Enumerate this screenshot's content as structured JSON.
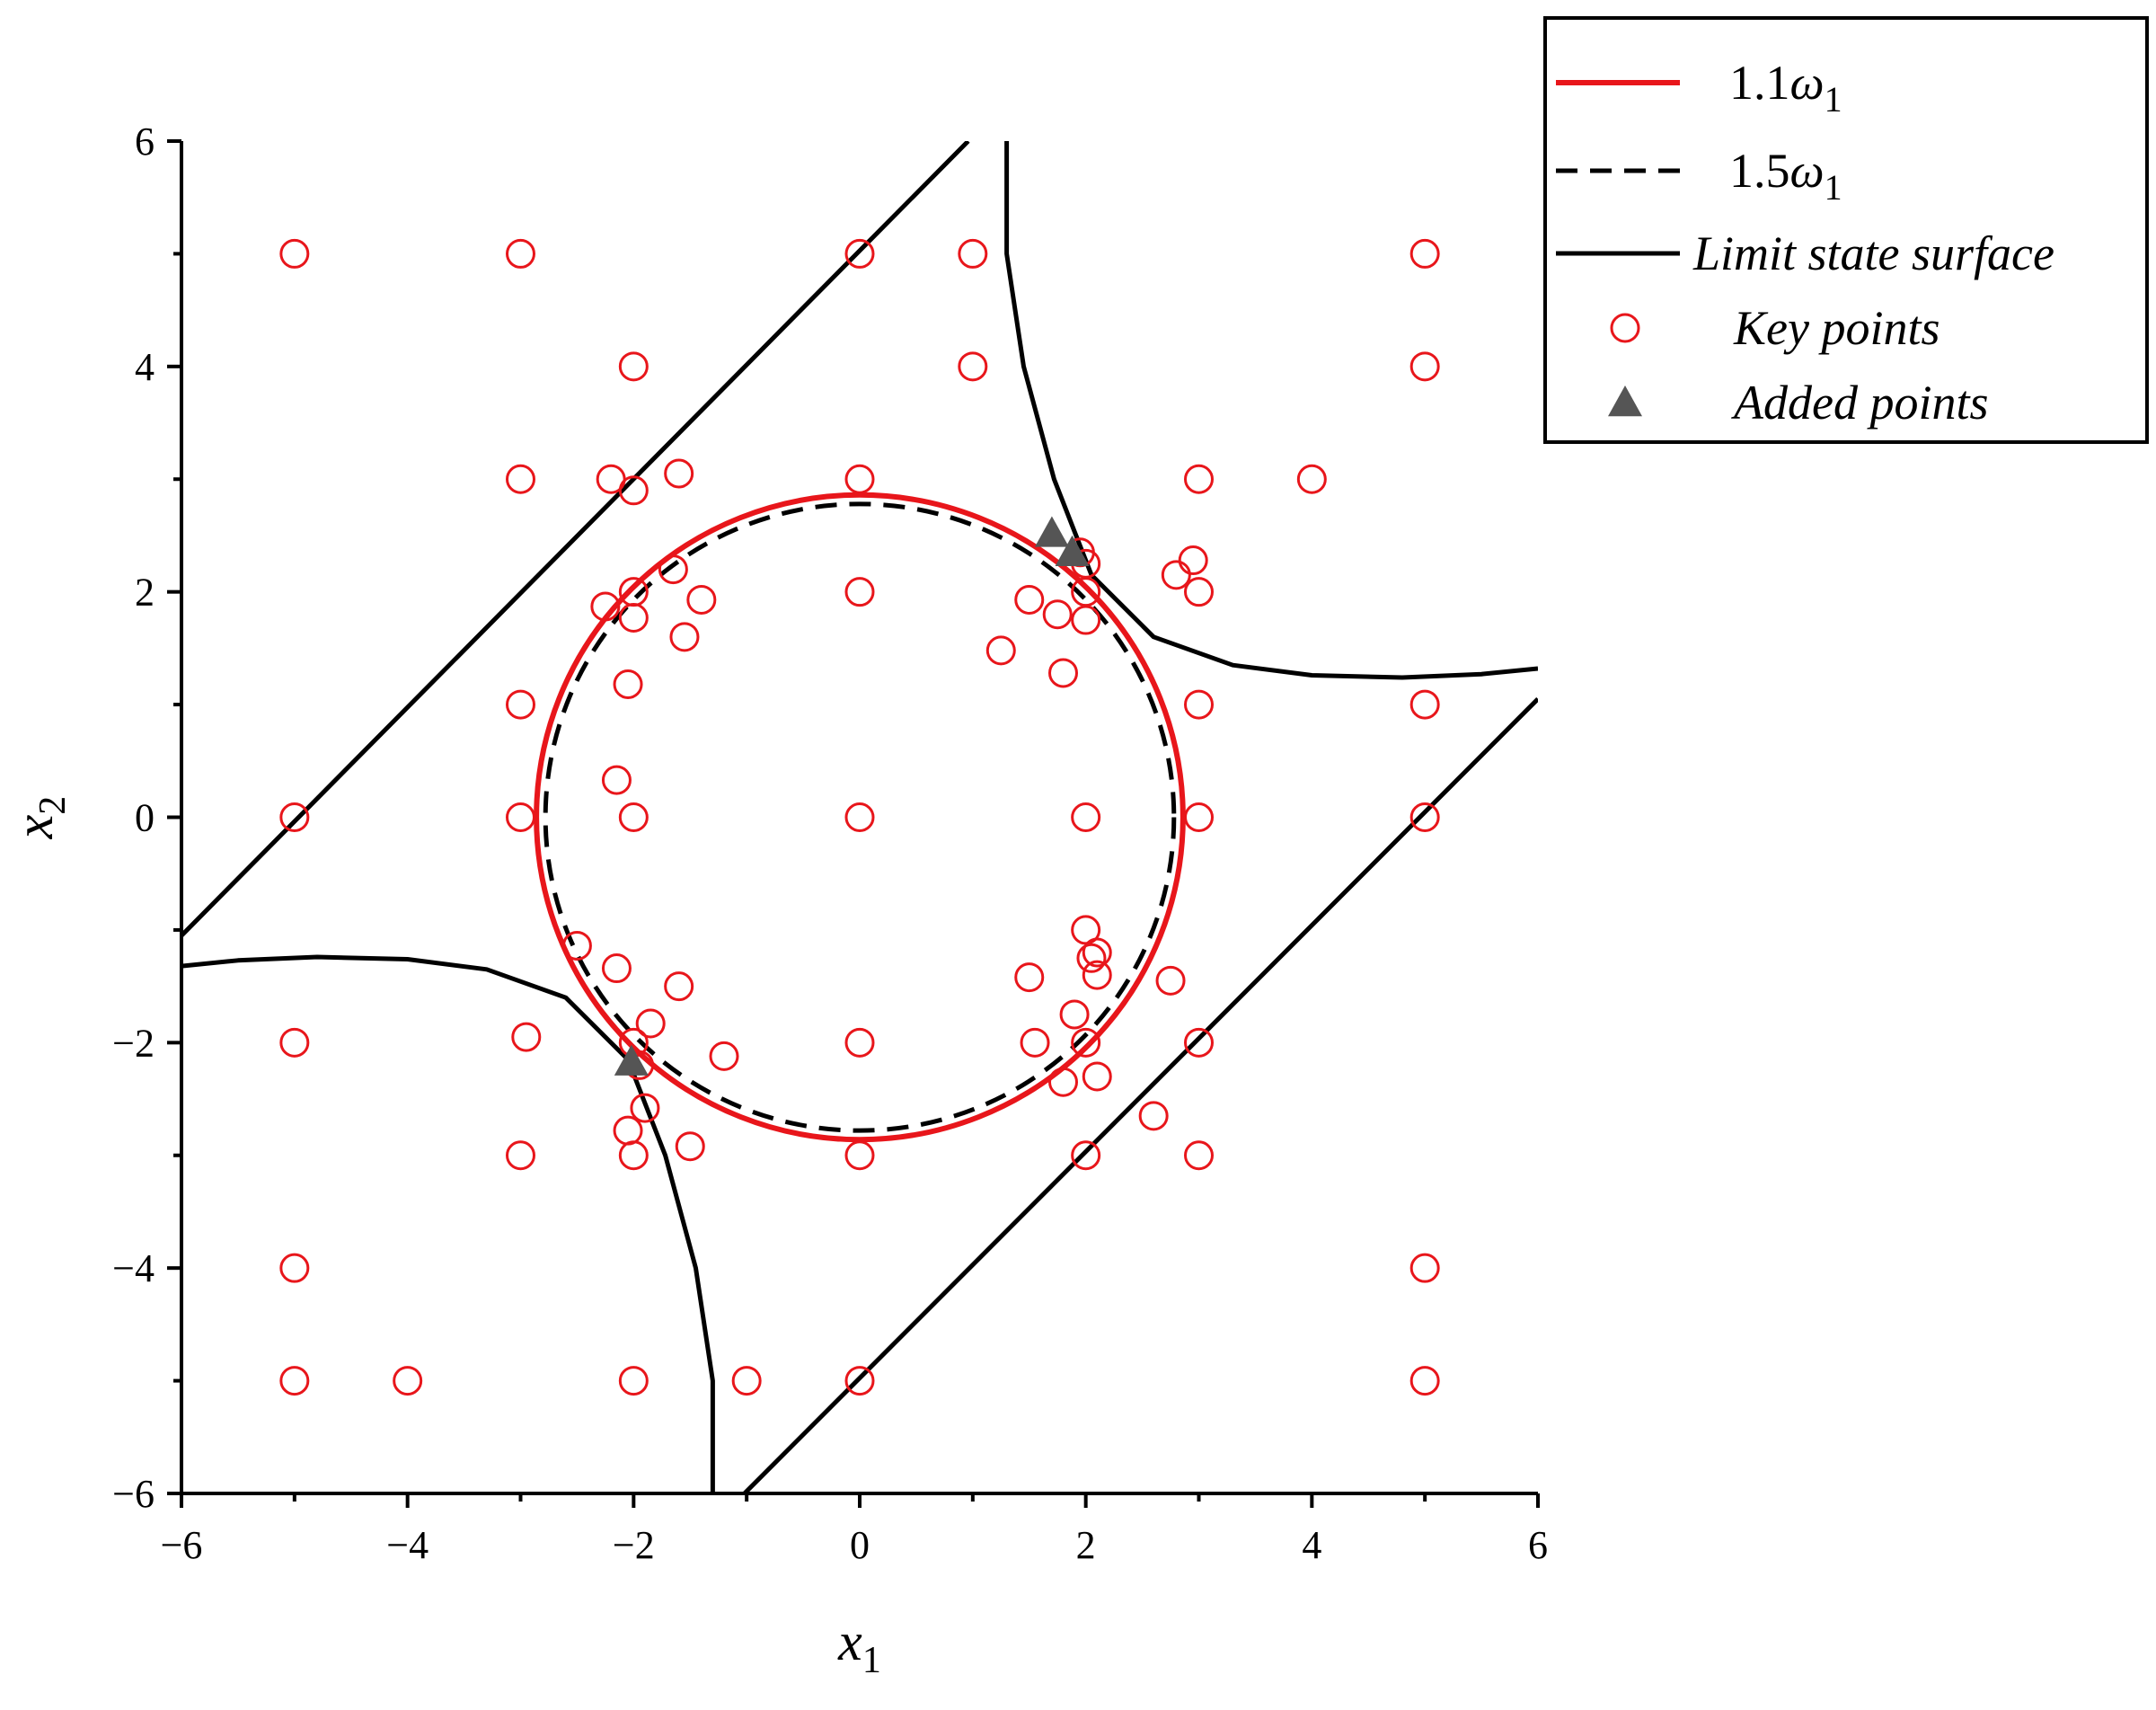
{
  "chart_data": {
    "type": "scatter",
    "xlabel": {
      "main": "x",
      "sub": "1"
    },
    "ylabel": {
      "main": "x",
      "sub": "2"
    },
    "xlim": [
      -6,
      6
    ],
    "ylim": [
      -6,
      6
    ],
    "xticks": [
      -6,
      -4,
      -2,
      0,
      2,
      4,
      6
    ],
    "yticks": [
      -6,
      -4,
      -2,
      0,
      2,
      4,
      6
    ],
    "xtick_labels": [
      "−6",
      "−4",
      "−2",
      "0",
      "2",
      "4",
      "6"
    ],
    "ytick_labels": [
      "−6",
      "−4",
      "−2",
      "0",
      "2",
      "4",
      "6"
    ],
    "grid": false,
    "legend_position": "top-right (outside plot)",
    "colors": {
      "red": "#e8161b",
      "black": "#000000",
      "marker_fill": "#555555"
    },
    "series": [
      {
        "name": "1.1ω1",
        "kind": "circle",
        "radius": 2.86,
        "center": [
          0,
          0
        ],
        "style": "solid",
        "color": "#e8161b"
      },
      {
        "name": "1.5ω1",
        "kind": "circle",
        "radius": 2.78,
        "center": [
          0,
          0
        ],
        "style": "dashed",
        "color": "#000000"
      },
      {
        "name": "Limit state surface",
        "kind": "curves",
        "style": "solid",
        "color": "#000000",
        "curves": [
          [
            [
              -6,
              -1.05
            ],
            [
              0.96,
              6.0
            ]
          ],
          [
            [
              -1.02,
              -6.0
            ],
            [
              6,
              1.05
            ]
          ],
          [
            [
              1.3,
              6.0
            ],
            [
              1.3,
              5.0
            ],
            [
              1.45,
              4.0
            ],
            [
              1.72,
              3.0
            ],
            [
              2.05,
              2.15
            ],
            [
              2.6,
              1.6
            ],
            [
              3.3,
              1.35
            ],
            [
              4.0,
              1.26
            ],
            [
              4.8,
              1.24
            ],
            [
              5.5,
              1.27
            ],
            [
              6.0,
              1.32
            ]
          ],
          [
            [
              -6.0,
              -1.32
            ],
            [
              -5.5,
              -1.27
            ],
            [
              -4.8,
              -1.24
            ],
            [
              -4.0,
              -1.26
            ],
            [
              -3.3,
              -1.35
            ],
            [
              -2.6,
              -1.6
            ],
            [
              -2.05,
              -2.15
            ],
            [
              -1.72,
              -3.0
            ],
            [
              -1.45,
              -4.0
            ],
            [
              -1.3,
              -5.0
            ],
            [
              -1.3,
              -6.0
            ]
          ]
        ]
      },
      {
        "name": "Key points",
        "kind": "markers",
        "marker": "open-circle",
        "color": "#e8161b",
        "points": [
          [
            -5,
            5
          ],
          [
            -3,
            5
          ],
          [
            0,
            5
          ],
          [
            1,
            5
          ],
          [
            5,
            5
          ],
          [
            -2,
            4
          ],
          [
            1,
            4
          ],
          [
            5,
            4
          ],
          [
            -3,
            3
          ],
          [
            -2.2,
            3
          ],
          [
            -2,
            2.9
          ],
          [
            -1.6,
            3.05
          ],
          [
            0,
            3
          ],
          [
            3,
            3
          ],
          [
            4,
            3
          ],
          [
            -1.65,
            2.2
          ],
          [
            -2,
            2
          ],
          [
            -2.25,
            1.87
          ],
          [
            -2,
            1.77
          ],
          [
            -1.4,
            1.93
          ],
          [
            -1.55,
            1.6
          ],
          [
            0,
            2
          ],
          [
            1.5,
            1.93
          ],
          [
            1.75,
            1.8
          ],
          [
            1.25,
            1.48
          ],
          [
            1.8,
            1.28
          ],
          [
            1.95,
            2.35
          ],
          [
            2.0,
            2.25
          ],
          [
            2.0,
            2.0
          ],
          [
            2.0,
            1.75
          ],
          [
            2.95,
            2.28
          ],
          [
            2.8,
            2.15
          ],
          [
            3,
            2
          ],
          [
            -2.05,
            1.18
          ],
          [
            -3,
            1
          ],
          [
            3,
            1
          ],
          [
            5,
            1
          ],
          [
            -5,
            0
          ],
          [
            -3,
            0
          ],
          [
            -2.15,
            0.33
          ],
          [
            -2,
            0
          ],
          [
            0,
            0
          ],
          [
            2,
            0
          ],
          [
            3,
            0
          ],
          [
            5,
            0
          ],
          [
            2,
            -1
          ],
          [
            2.05,
            -1.25
          ],
          [
            2.1,
            -1.2
          ],
          [
            2.1,
            -1.4
          ],
          [
            -2.5,
            -1.14
          ],
          [
            -2.15,
            -1.34
          ],
          [
            -1.6,
            -1.5
          ],
          [
            1.5,
            -1.42
          ],
          [
            2.75,
            -1.45
          ],
          [
            1.9,
            -1.75
          ],
          [
            -5,
            -2
          ],
          [
            -2.95,
            -1.95
          ],
          [
            -2,
            -2
          ],
          [
            -1.85,
            -1.83
          ],
          [
            -1.2,
            -2.12
          ],
          [
            0,
            -2
          ],
          [
            1.55,
            -2.0
          ],
          [
            2,
            -2
          ],
          [
            3,
            -2
          ],
          [
            -1.95,
            -2.2
          ],
          [
            1.8,
            -2.35
          ],
          [
            2.1,
            -2.3
          ],
          [
            -1.9,
            -2.58
          ],
          [
            -2.05,
            -2.78
          ],
          [
            -1.5,
            -2.92
          ],
          [
            2.6,
            -2.65
          ],
          [
            -3,
            -3
          ],
          [
            -2,
            -3
          ],
          [
            0,
            -3
          ],
          [
            2,
            -3
          ],
          [
            3,
            -3
          ],
          [
            -5,
            -4
          ],
          [
            5,
            -4
          ],
          [
            -5,
            -5
          ],
          [
            -4,
            -5
          ],
          [
            -2,
            -5
          ],
          [
            -1,
            -5
          ],
          [
            0,
            -5
          ],
          [
            5,
            -5
          ]
        ]
      },
      {
        "name": "Added points",
        "kind": "markers",
        "marker": "filled-triangle",
        "color": "#555555",
        "points": [
          [
            1.7,
            2.52
          ],
          [
            1.88,
            2.35
          ],
          [
            -2.02,
            -2.17
          ]
        ]
      }
    ],
    "legend": [
      {
        "key": "l1",
        "base": "1.1",
        "omega": "ω",
        "sub": "1",
        "symbol": "red-line"
      },
      {
        "key": "l2",
        "base": "1.5",
        "omega": "ω",
        "sub": "1",
        "symbol": "black-dashed-line"
      },
      {
        "key": "l3",
        "label": "Limit state surface",
        "symbol": "black-line"
      },
      {
        "key": "l4",
        "label": "Key points",
        "symbol": "red-open-circle"
      },
      {
        "key": "l5",
        "label": "Added points",
        "symbol": "gray-triangle"
      }
    ]
  }
}
